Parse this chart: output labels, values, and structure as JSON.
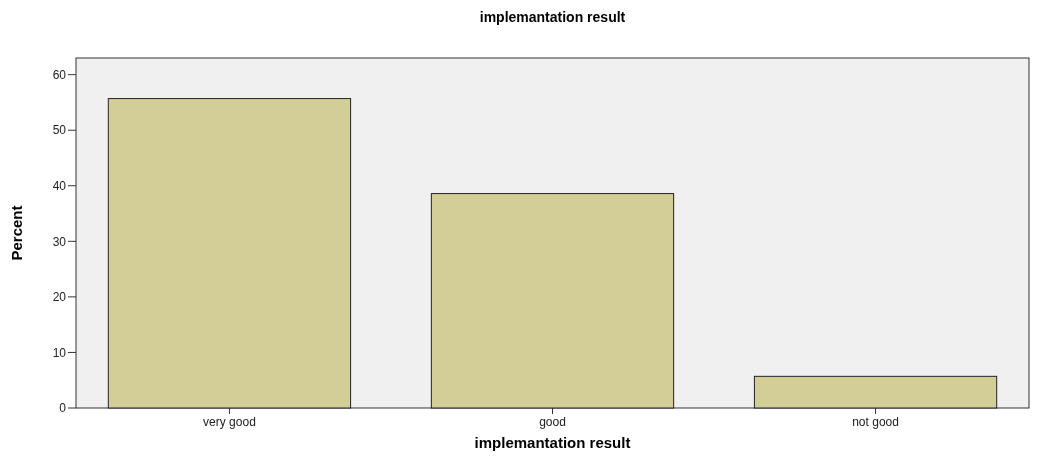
{
  "chart_data": {
    "type": "bar",
    "title": "implemantation result",
    "xlabel": "implemantation result",
    "ylabel": "Percent",
    "categories": [
      "very good",
      "good",
      "not good"
    ],
    "values": [
      55.7,
      38.6,
      5.7
    ],
    "color": "#d3ce97",
    "ylim": [
      0,
      63
    ],
    "yticks": [
      0,
      10,
      20,
      30,
      40,
      50,
      60
    ],
    "grid": false
  }
}
